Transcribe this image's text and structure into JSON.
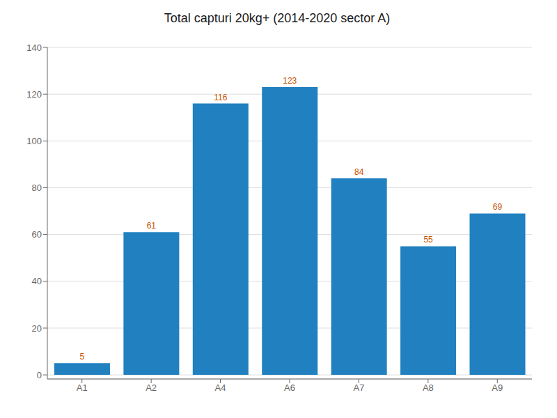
{
  "chart_data": {
    "type": "bar",
    "title": "Total capturi 20kg+ (2014-2020 sector A)",
    "categories": [
      "A1",
      "A2",
      "A4",
      "A6",
      "A7",
      "A8",
      "A9"
    ],
    "values": [
      5,
      61,
      116,
      123,
      84,
      55,
      69
    ],
    "color": "#2080c0",
    "ylim": [
      -1.75,
      140
    ],
    "yticks": [
      0,
      20,
      40,
      60,
      80,
      100,
      120,
      140
    ],
    "grid": true,
    "data_labels": true
  }
}
